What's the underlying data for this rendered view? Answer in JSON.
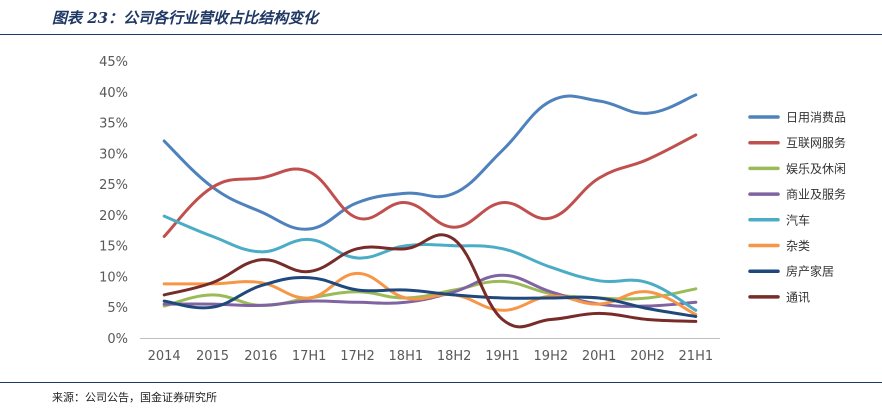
{
  "header": {
    "title": "图表 23：公司各行业营收占比结构变化"
  },
  "footer": {
    "source": "来源：公司公告，国金证券研究所"
  },
  "chart_data": {
    "type": "line",
    "title": "",
    "xlabel": "",
    "ylabel": "",
    "ylim": [
      0,
      45
    ],
    "yticks": [
      "0%",
      "5%",
      "10%",
      "15%",
      "20%",
      "25%",
      "30%",
      "35%",
      "40%",
      "45%"
    ],
    "categories": [
      "2014",
      "2015",
      "2016",
      "17H1",
      "17H2",
      "18H1",
      "18H2",
      "19H1",
      "19H2",
      "20H1",
      "20H2",
      "21H1"
    ],
    "grid": false,
    "legend_position": "right",
    "series": [
      {
        "name": "日用消费品",
        "color": "#4f81bd",
        "values": [
          32,
          24.5,
          20.5,
          17.7,
          22,
          23.5,
          23.5,
          30.5,
          38.5,
          38.5,
          36.5,
          39.5
        ]
      },
      {
        "name": "互联网服务",
        "color": "#c0504d",
        "values": [
          16.5,
          24.5,
          26,
          27,
          19.5,
          22,
          18,
          22,
          19.5,
          26,
          29,
          33
        ]
      },
      {
        "name": "娱乐及休闲",
        "color": "#9bbb59",
        "values": [
          5.2,
          7,
          5.3,
          6.5,
          7.5,
          6.5,
          7.8,
          9.2,
          7.2,
          6.5,
          6.5,
          8
        ]
      },
      {
        "name": "商业及服务",
        "color": "#8064a2",
        "values": [
          5.5,
          5.5,
          5.3,
          6,
          5.8,
          5.8,
          7.5,
          10.2,
          7.5,
          5.5,
          5.2,
          5.8
        ]
      },
      {
        "name": "汽车",
        "color": "#4bacc6",
        "values": [
          19.8,
          16.5,
          14,
          16,
          13,
          15,
          15,
          14.5,
          11.5,
          9.3,
          9,
          4.5
        ]
      },
      {
        "name": "杂类",
        "color": "#f79646",
        "values": [
          8.8,
          8.8,
          9,
          6.5,
          10.5,
          6.5,
          7,
          4.5,
          6.8,
          5.5,
          7.5,
          3.8
        ]
      },
      {
        "name": "房产家居",
        "color": "#1f497d",
        "values": [
          6,
          5,
          8.5,
          9.8,
          7.8,
          7.8,
          7,
          6.5,
          6.5,
          6.5,
          4.8,
          3.5
        ]
      },
      {
        "name": "通讯",
        "color": "#772c2a",
        "values": [
          7,
          9,
          12.7,
          10.8,
          14.5,
          14.5,
          16,
          3,
          3,
          4,
          3,
          2.7
        ]
      }
    ]
  }
}
